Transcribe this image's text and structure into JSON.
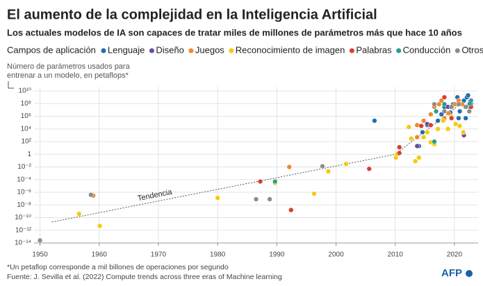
{
  "chart_data": {
    "type": "scatter",
    "title": "El aumento de la complejidad en la Inteligencia Artificial",
    "subtitle": "Los actuales modelos de IA son capaces de tratar miles de millones de parámetros más que hace 10 años",
    "legend_title": "Campos de aplicación",
    "y_label": [
      "Número de parámetros usados para",
      "entrenar a un modelo, en petaflops*"
    ],
    "log_y": true,
    "grid": true,
    "xlim": [
      1949,
      2024
    ],
    "xticks": [
      1950,
      1960,
      1970,
      1980,
      1990,
      2000,
      2010,
      2020
    ],
    "ylim": [
      1e-14,
      10000000000.0
    ],
    "yticks": [
      {
        "value": 1e-14,
        "label": "10⁻¹⁴"
      },
      {
        "value": 1e-12,
        "label": "10⁻¹²"
      },
      {
        "value": 1e-10,
        "label": "10⁻¹⁰"
      },
      {
        "value": 1e-08,
        "label": "10⁻⁸"
      },
      {
        "value": 1e-06,
        "label": "10⁻⁶"
      },
      {
        "value": 0.0001,
        "label": "10⁻⁴"
      },
      {
        "value": 0.01,
        "label": "10⁻²"
      },
      1,
      {
        "value": 100,
        "label": "10²"
      },
      {
        "value": 10000.0,
        "label": "10⁴"
      },
      {
        "value": 1000000.0,
        "label": "10⁶"
      },
      {
        "value": 100000000.0,
        "label": "10⁸"
      },
      {
        "value": 10000000000.0,
        "label": "10¹⁰"
      }
    ],
    "trend": {
      "label": "Tendencia",
      "x": [
        1952,
        2010,
        2022.5
      ],
      "values": [
        2e-11,
        1,
        1000000000.0
      ]
    },
    "series": [
      {
        "name": "Lenguaje",
        "color": "#1f6fae",
        "x": [
          2006.5,
          2014.0,
          2014.6,
          2015.4,
          2016.6,
          2017.2,
          2017.8,
          2018.3,
          2019.3,
          2019.8,
          2020.5,
          2020.9,
          2021.6,
          2022.1,
          2022.5,
          2022.6,
          2022.8,
          2022.3,
          2021.9,
          2020.7,
          2022.8,
          2022.7
        ],
        "values": [
          200000.0,
          20,
          3000.0,
          40000.0,
          100,
          200000.0,
          2000000.0,
          30000000.0,
          4000000.0,
          80000000.0,
          1000000000.0,
          6000000.0,
          300000000.0,
          1000000000.0,
          80000000.0,
          30000000.0,
          300000000.0,
          2000000000.0,
          500000.0,
          500000.0,
          100000000.0,
          200000000.0
        ]
      },
      {
        "name": "Diseño",
        "color": "#6b4c9a",
        "x": [
          2015.4,
          2018.9,
          2021.6,
          2013.7
        ],
        "values": [
          60000.0,
          30000000.0,
          1000.0,
          20
        ]
      },
      {
        "name": "Juegos",
        "color": "#ec8a2f",
        "x": [
          1959,
          1992.1,
          2013.7,
          2014.8,
          2016.0,
          2016.6,
          2017.4,
          2017.8,
          2018.3,
          2019.0,
          2020.1,
          2020.7,
          2021.3,
          2021.9,
          2013.7,
          2022.8
        ],
        "values": [
          3e-07,
          0.01,
          40000.0,
          200000.0,
          2000000.0,
          30000000.0,
          80000000.0,
          300000000.0,
          500000.0,
          3000000.0,
          80000000.0,
          300000000.0,
          80000000.0,
          30000000.0,
          500,
          30000000.0
        ]
      },
      {
        "name": "Reconocimiento de imagen",
        "color": "#f6c90e",
        "x": [
          1956.6,
          1960.1,
          1980,
          1989.7,
          1996.3,
          1998.7,
          2001.7,
          2010.1,
          2010.3,
          2012.3,
          2012.7,
          2013.4,
          2014.0,
          2014.8,
          2015.4,
          2016.0,
          2016.6,
          2017.2,
          2018.1,
          2018.9,
          2019.5,
          2020.2,
          2020.9,
          2021.5
        ],
        "values": [
          4e-10,
          5e-12,
          1.3e-07,
          3e-05,
          6e-07,
          0.002,
          0.03,
          0.3,
          1,
          20000.0,
          300,
          0.08,
          0.3,
          500,
          3000.0,
          80,
          40,
          10000.0,
          200000.0,
          10000.0,
          800000.0,
          60000.0,
          30000.0,
          3000.0
        ]
      },
      {
        "name": "Palabras",
        "color": "#d7402e",
        "x": [
          1987.2,
          1992.4,
          2005.6,
          2010.7,
          2010.7,
          2014.4,
          2016.0,
          2018.3,
          2019.5,
          2022.8
        ],
        "values": [
          5e-05,
          1.6e-09,
          0.005,
          13,
          1.6,
          30000.0,
          40000.0,
          1000000000.0,
          500000.0,
          30000000.0
        ]
      },
      {
        "name": "Conducción",
        "color": "#2a9d8f",
        "x": [
          1989.7,
          2016.6,
          2016.9,
          2018.3,
          2022.6
        ],
        "values": [
          5e-05,
          100,
          6000000.0,
          80000000.0,
          100000000.0
        ]
      },
      {
        "name": "Otros",
        "color": "#8c8c8c",
        "x": [
          1950,
          1958.6,
          1986.5,
          1988.8,
          1997.7,
          2016.6,
          2018.3,
          2019.5,
          2020.7,
          2021.9,
          2022.5
        ],
        "values": [
          2.5e-14,
          4e-07,
          8e-08,
          8e-08,
          0.013,
          80000000.0,
          6000000.0,
          30000000.0,
          80000000.0,
          30000000.0,
          6000000.0
        ]
      }
    ],
    "footnote": "*Un petaflop corresponde a mil billones de operaciones por segundo",
    "source": "Fuente: J. Sevilla et al. (2022) Compute trends across three eras of Machine learning",
    "logo": "AFP"
  }
}
